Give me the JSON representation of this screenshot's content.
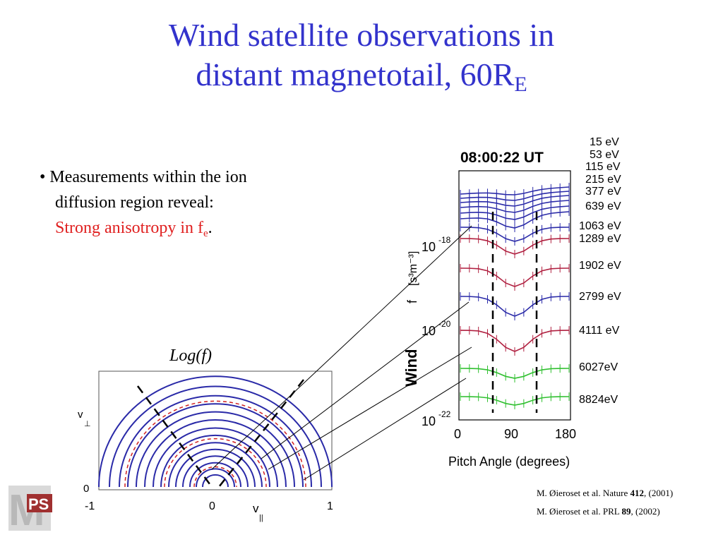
{
  "title": {
    "line1": "Wind satellite observations in",
    "line2_main": "distant magnetotail, 60R",
    "line2_sub": "E"
  },
  "bullets": {
    "marker": "•",
    "line1": "Measurements within the ion",
    "line2": "diffusion region reveal:",
    "line3_red": "Strong anisotropy in f",
    "line3_sub": "e",
    "line3_end": "."
  },
  "left_plot": {
    "caption": "Log(f)",
    "ylabel": "v",
    "ylabel_sub": "⊥",
    "xlabel": "v",
    "xlabel_sub": "||",
    "xticks": [
      "-1",
      "0",
      "1"
    ],
    "ytick_zero": "0"
  },
  "right_plot": {
    "header": "08:00:22 UT",
    "ylabel_f": "f",
    "ylabel_units": "[s³m⁻³]",
    "ylabel_wind": "Wind",
    "yticks": [
      "10",
      "10",
      "10"
    ],
    "ytick_exps": [
      "-18",
      "-20",
      "-22"
    ],
    "xticks": [
      "0",
      "90",
      "180"
    ],
    "xlabel": "Pitch Angle (degrees)",
    "energies": [
      "15 eV",
      "53 eV",
      "115 eV",
      "215 eV",
      "377 eV",
      "639 eV",
      "1063 eV",
      "1289 eV",
      "1902 eV",
      "2799 eV",
      "4111 eV",
      "6027eV",
      "8824eV"
    ]
  },
  "references": {
    "ref1_text": "M. Øieroset et al. Nature ",
    "ref1_vol": "412",
    "ref1_year": ", (2001)",
    "ref2_text": "M. Øieroset et al. PRL  ",
    "ref2_vol": "89",
    "ref2_year": ", (2002)"
  },
  "logo": {
    "letter": "M",
    "tag": "PS"
  },
  "colors": {
    "title": "#3333cc",
    "highlight": "#e02020",
    "curve_blue": "#2a2aa8",
    "curve_red": "#b02040",
    "curve_green": "#30c030"
  }
}
